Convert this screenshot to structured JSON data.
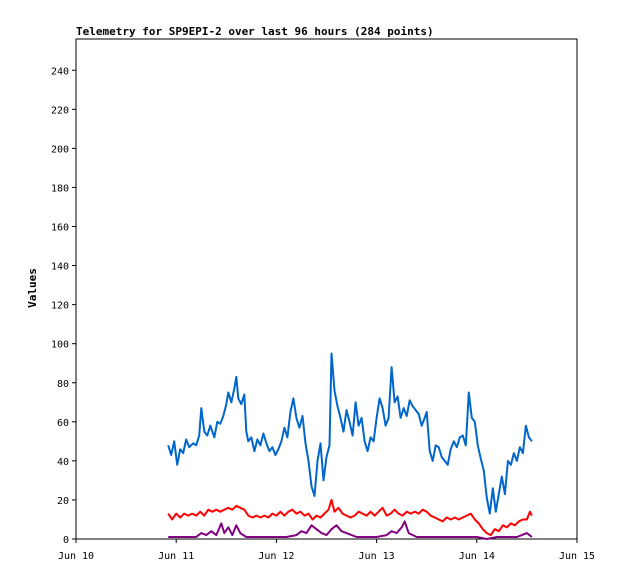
{
  "chart_data": {
    "type": "line",
    "title": "Telemetry for SP9EPI-2 over last 96 hours (284 points)",
    "xlabel": "",
    "ylabel": "Values",
    "x_ticks": [
      "Jun 10",
      "Jun 11",
      "Jun 12",
      "Jun 13",
      "Jun 14",
      "Jun 15"
    ],
    "y_ticks": [
      "0",
      "20",
      "40",
      "60",
      "80",
      "100",
      "120",
      "140",
      "160",
      "180",
      "200",
      "220",
      "240"
    ],
    "xlim_days": [
      10,
      15
    ],
    "ylim": [
      0,
      256
    ],
    "grid": false,
    "legend": "none",
    "x_unit": "day of June",
    "series": [
      {
        "color": "#0066cc",
        "points": [
          [
            10.92,
            48
          ],
          [
            10.95,
            43
          ],
          [
            10.98,
            50
          ],
          [
            11.01,
            38
          ],
          [
            11.04,
            46
          ],
          [
            11.07,
            44
          ],
          [
            11.1,
            51
          ],
          [
            11.13,
            47
          ],
          [
            11.17,
            49
          ],
          [
            11.2,
            48
          ],
          [
            11.23,
            53
          ],
          [
            11.25,
            67
          ],
          [
            11.28,
            55
          ],
          [
            11.31,
            53
          ],
          [
            11.34,
            58
          ],
          [
            11.38,
            52
          ],
          [
            11.41,
            60
          ],
          [
            11.44,
            59
          ],
          [
            11.47,
            63
          ],
          [
            11.5,
            69
          ],
          [
            11.52,
            75
          ],
          [
            11.55,
            70
          ],
          [
            11.58,
            77
          ],
          [
            11.6,
            83
          ],
          [
            11.62,
            72
          ],
          [
            11.65,
            69
          ],
          [
            11.68,
            74
          ],
          [
            11.7,
            55
          ],
          [
            11.72,
            50
          ],
          [
            11.75,
            52
          ],
          [
            11.78,
            45
          ],
          [
            11.81,
            51
          ],
          [
            11.84,
            48
          ],
          [
            11.87,
            54
          ],
          [
            11.9,
            49
          ],
          [
            11.93,
            45
          ],
          [
            11.96,
            47
          ],
          [
            11.99,
            43
          ],
          [
            12.02,
            46
          ],
          [
            12.05,
            50
          ],
          [
            12.08,
            57
          ],
          [
            12.11,
            52
          ],
          [
            12.14,
            65
          ],
          [
            12.17,
            72
          ],
          [
            12.2,
            62
          ],
          [
            12.23,
            57
          ],
          [
            12.26,
            63
          ],
          [
            12.29,
            49
          ],
          [
            12.32,
            40
          ],
          [
            12.35,
            27
          ],
          [
            12.38,
            22
          ],
          [
            12.41,
            40
          ],
          [
            12.44,
            49
          ],
          [
            12.47,
            30
          ],
          [
            12.5,
            42
          ],
          [
            12.53,
            48
          ],
          [
            12.55,
            95
          ],
          [
            12.58,
            76
          ],
          [
            12.61,
            68
          ],
          [
            12.64,
            62
          ],
          [
            12.67,
            55
          ],
          [
            12.7,
            66
          ],
          [
            12.73,
            60
          ],
          [
            12.76,
            53
          ],
          [
            12.79,
            70
          ],
          [
            12.82,
            58
          ],
          [
            12.85,
            62
          ],
          [
            12.88,
            50
          ],
          [
            12.91,
            45
          ],
          [
            12.94,
            52
          ],
          [
            12.97,
            50
          ],
          [
            13.0,
            62
          ],
          [
            13.03,
            72
          ],
          [
            13.06,
            67
          ],
          [
            13.09,
            58
          ],
          [
            13.12,
            62
          ],
          [
            13.15,
            88
          ],
          [
            13.18,
            70
          ],
          [
            13.21,
            73
          ],
          [
            13.24,
            62
          ],
          [
            13.27,
            67
          ],
          [
            13.3,
            63
          ],
          [
            13.33,
            71
          ],
          [
            13.36,
            68
          ],
          [
            13.39,
            66
          ],
          [
            13.42,
            64
          ],
          [
            13.45,
            58
          ],
          [
            13.48,
            62
          ],
          [
            13.5,
            65
          ],
          [
            13.53,
            45
          ],
          [
            13.56,
            40
          ],
          [
            13.59,
            48
          ],
          [
            13.62,
            47
          ],
          [
            13.65,
            42
          ],
          [
            13.68,
            40
          ],
          [
            13.71,
            38
          ],
          [
            13.74,
            46
          ],
          [
            13.77,
            50
          ],
          [
            13.8,
            47
          ],
          [
            13.83,
            52
          ],
          [
            13.86,
            53
          ],
          [
            13.89,
            48
          ],
          [
            13.92,
            75
          ],
          [
            13.95,
            62
          ],
          [
            13.98,
            60
          ],
          [
            14.01,
            48
          ],
          [
            14.04,
            41
          ],
          [
            14.07,
            35
          ],
          [
            14.1,
            21
          ],
          [
            14.13,
            13
          ],
          [
            14.16,
            26
          ],
          [
            14.19,
            14
          ],
          [
            14.22,
            23
          ],
          [
            14.25,
            32
          ],
          [
            14.28,
            23
          ],
          [
            14.31,
            40
          ],
          [
            14.34,
            38
          ],
          [
            14.37,
            44
          ],
          [
            14.4,
            40
          ],
          [
            14.43,
            47
          ],
          [
            14.46,
            44
          ],
          [
            14.49,
            58
          ],
          [
            14.52,
            52
          ],
          [
            14.55,
            50
          ]
        ]
      },
      {
        "color": "#ff0000",
        "points": [
          [
            10.92,
            13
          ],
          [
            10.96,
            10
          ],
          [
            11.0,
            13
          ],
          [
            11.04,
            11
          ],
          [
            11.08,
            13
          ],
          [
            11.12,
            12
          ],
          [
            11.16,
            13
          ],
          [
            11.2,
            12
          ],
          [
            11.24,
            14
          ],
          [
            11.28,
            12
          ],
          [
            11.32,
            15
          ],
          [
            11.36,
            14
          ],
          [
            11.4,
            15
          ],
          [
            11.44,
            14
          ],
          [
            11.48,
            15
          ],
          [
            11.52,
            16
          ],
          [
            11.56,
            15
          ],
          [
            11.6,
            17
          ],
          [
            11.64,
            16
          ],
          [
            11.68,
            15
          ],
          [
            11.72,
            12
          ],
          [
            11.76,
            11
          ],
          [
            11.8,
            12
          ],
          [
            11.84,
            11
          ],
          [
            11.88,
            12
          ],
          [
            11.92,
            11
          ],
          [
            11.96,
            13
          ],
          [
            12.0,
            12
          ],
          [
            12.04,
            14
          ],
          [
            12.08,
            12
          ],
          [
            12.12,
            14
          ],
          [
            12.16,
            15
          ],
          [
            12.2,
            13
          ],
          [
            12.24,
            14
          ],
          [
            12.28,
            12
          ],
          [
            12.32,
            13
          ],
          [
            12.36,
            10
          ],
          [
            12.4,
            12
          ],
          [
            12.44,
            11
          ],
          [
            12.48,
            13
          ],
          [
            12.52,
            15
          ],
          [
            12.55,
            20
          ],
          [
            12.58,
            14
          ],
          [
            12.62,
            16
          ],
          [
            12.66,
            13
          ],
          [
            12.7,
            12
          ],
          [
            12.74,
            11
          ],
          [
            12.78,
            12
          ],
          [
            12.82,
            14
          ],
          [
            12.86,
            13
          ],
          [
            12.9,
            12
          ],
          [
            12.94,
            14
          ],
          [
            12.98,
            12
          ],
          [
            13.02,
            14
          ],
          [
            13.06,
            16
          ],
          [
            13.1,
            12
          ],
          [
            13.14,
            13
          ],
          [
            13.18,
            15
          ],
          [
            13.22,
            13
          ],
          [
            13.26,
            12
          ],
          [
            13.3,
            14
          ],
          [
            13.34,
            13
          ],
          [
            13.38,
            14
          ],
          [
            13.42,
            13
          ],
          [
            13.46,
            15
          ],
          [
            13.5,
            14
          ],
          [
            13.54,
            12
          ],
          [
            13.58,
            11
          ],
          [
            13.62,
            10
          ],
          [
            13.66,
            9
          ],
          [
            13.7,
            11
          ],
          [
            13.74,
            10
          ],
          [
            13.78,
            11
          ],
          [
            13.82,
            10
          ],
          [
            13.86,
            11
          ],
          [
            13.9,
            12
          ],
          [
            13.94,
            13
          ],
          [
            13.98,
            10
          ],
          [
            14.02,
            8
          ],
          [
            14.06,
            5
          ],
          [
            14.1,
            3
          ],
          [
            14.14,
            2
          ],
          [
            14.18,
            5
          ],
          [
            14.22,
            4
          ],
          [
            14.26,
            7
          ],
          [
            14.3,
            6
          ],
          [
            14.34,
            8
          ],
          [
            14.38,
            7
          ],
          [
            14.42,
            9
          ],
          [
            14.46,
            10
          ],
          [
            14.5,
            10
          ],
          [
            14.53,
            14
          ],
          [
            14.55,
            12
          ]
        ]
      },
      {
        "color": "#800080",
        "points": [
          [
            10.92,
            1
          ],
          [
            11.0,
            1
          ],
          [
            11.1,
            1
          ],
          [
            11.2,
            1
          ],
          [
            11.25,
            3
          ],
          [
            11.3,
            2
          ],
          [
            11.35,
            4
          ],
          [
            11.4,
            2
          ],
          [
            11.45,
            8
          ],
          [
            11.48,
            3
          ],
          [
            11.52,
            6
          ],
          [
            11.56,
            2
          ],
          [
            11.6,
            7
          ],
          [
            11.64,
            3
          ],
          [
            11.7,
            1
          ],
          [
            11.8,
            1
          ],
          [
            11.9,
            1
          ],
          [
            12.0,
            1
          ],
          [
            12.1,
            1
          ],
          [
            12.2,
            2
          ],
          [
            12.25,
            4
          ],
          [
            12.3,
            3
          ],
          [
            12.35,
            7
          ],
          [
            12.4,
            5
          ],
          [
            12.45,
            3
          ],
          [
            12.5,
            2
          ],
          [
            12.55,
            5
          ],
          [
            12.6,
            7
          ],
          [
            12.65,
            4
          ],
          [
            12.7,
            3
          ],
          [
            12.75,
            2
          ],
          [
            12.8,
            1
          ],
          [
            12.9,
            1
          ],
          [
            13.0,
            1
          ],
          [
            13.1,
            2
          ],
          [
            13.15,
            4
          ],
          [
            13.2,
            3
          ],
          [
            13.25,
            6
          ],
          [
            13.28,
            9
          ],
          [
            13.32,
            3
          ],
          [
            13.4,
            1
          ],
          [
            13.5,
            1
          ],
          [
            13.6,
            1
          ],
          [
            13.7,
            1
          ],
          [
            13.8,
            1
          ],
          [
            13.9,
            1
          ],
          [
            14.0,
            1
          ],
          [
            14.1,
            0
          ],
          [
            14.2,
            1
          ],
          [
            14.3,
            1
          ],
          [
            14.4,
            1
          ],
          [
            14.45,
            2
          ],
          [
            14.5,
            3
          ],
          [
            14.55,
            1
          ]
        ]
      }
    ]
  }
}
